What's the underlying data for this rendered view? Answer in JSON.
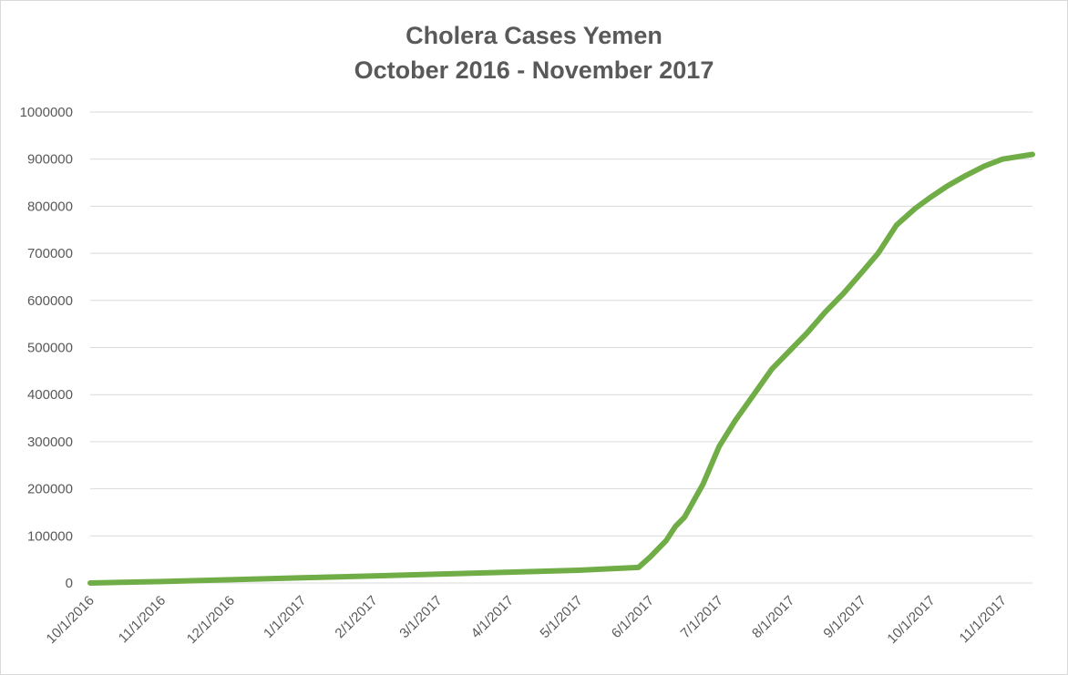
{
  "chart_data": {
    "type": "line",
    "title": "Cholera Cases Yemen",
    "subtitle": "October 2016 - November 2017",
    "xlabel": "",
    "ylabel": "",
    "ylim": [
      0,
      1000000
    ],
    "yticks": [
      0,
      100000,
      200000,
      300000,
      400000,
      500000,
      600000,
      700000,
      800000,
      900000,
      1000000
    ],
    "ytick_labels": [
      "0",
      "100000",
      "200000",
      "300000",
      "400000",
      "500000",
      "600000",
      "700000",
      "800000",
      "900000",
      "1000000"
    ],
    "xlim": [
      "2016-10-01",
      "2017-11-14"
    ],
    "xtick_labels": [
      "10/1/2016",
      "11/1/2016",
      "12/1/2016",
      "1/1/2017",
      "2/1/2017",
      "3/1/2017",
      "4/1/2017",
      "5/1/2017",
      "6/1/2017",
      "7/1/2017",
      "8/1/2017",
      "9/1/2017",
      "10/1/2017",
      "11/1/2017"
    ],
    "xtick_dates": [
      "2016-10-01",
      "2016-11-01",
      "2016-12-01",
      "2017-01-01",
      "2017-02-01",
      "2017-03-01",
      "2017-04-01",
      "2017-05-01",
      "2017-06-01",
      "2017-07-01",
      "2017-08-01",
      "2017-09-01",
      "2017-10-01",
      "2017-11-01"
    ],
    "grid": true,
    "legend": "none",
    "series": [
      {
        "color": "#70ad47",
        "points": [
          {
            "x": "2016-10-01",
            "y": 0
          },
          {
            "x": "2016-11-01",
            "y": 3000
          },
          {
            "x": "2016-12-01",
            "y": 7000
          },
          {
            "x": "2017-01-01",
            "y": 11000
          },
          {
            "x": "2017-02-01",
            "y": 15000
          },
          {
            "x": "2017-03-01",
            "y": 19000
          },
          {
            "x": "2017-04-01",
            "y": 23000
          },
          {
            "x": "2017-05-01",
            "y": 27000
          },
          {
            "x": "2017-05-27",
            "y": 33000
          },
          {
            "x": "2017-06-01",
            "y": 55000
          },
          {
            "x": "2017-06-08",
            "y": 90000
          },
          {
            "x": "2017-06-12",
            "y": 120000
          },
          {
            "x": "2017-06-16",
            "y": 140000
          },
          {
            "x": "2017-06-24",
            "y": 210000
          },
          {
            "x": "2017-07-01",
            "y": 290000
          },
          {
            "x": "2017-07-08",
            "y": 345000
          },
          {
            "x": "2017-07-16",
            "y": 400000
          },
          {
            "x": "2017-07-24",
            "y": 455000
          },
          {
            "x": "2017-08-01",
            "y": 495000
          },
          {
            "x": "2017-08-08",
            "y": 530000
          },
          {
            "x": "2017-08-16",
            "y": 575000
          },
          {
            "x": "2017-08-24",
            "y": 615000
          },
          {
            "x": "2017-09-01",
            "y": 660000
          },
          {
            "x": "2017-09-08",
            "y": 700000
          },
          {
            "x": "2017-09-16",
            "y": 760000
          },
          {
            "x": "2017-09-24",
            "y": 795000
          },
          {
            "x": "2017-10-01",
            "y": 820000
          },
          {
            "x": "2017-10-08",
            "y": 843000
          },
          {
            "x": "2017-10-16",
            "y": 865000
          },
          {
            "x": "2017-10-24",
            "y": 885000
          },
          {
            "x": "2017-11-01",
            "y": 900000
          },
          {
            "x": "2017-11-14",
            "y": 910000
          }
        ]
      }
    ]
  }
}
